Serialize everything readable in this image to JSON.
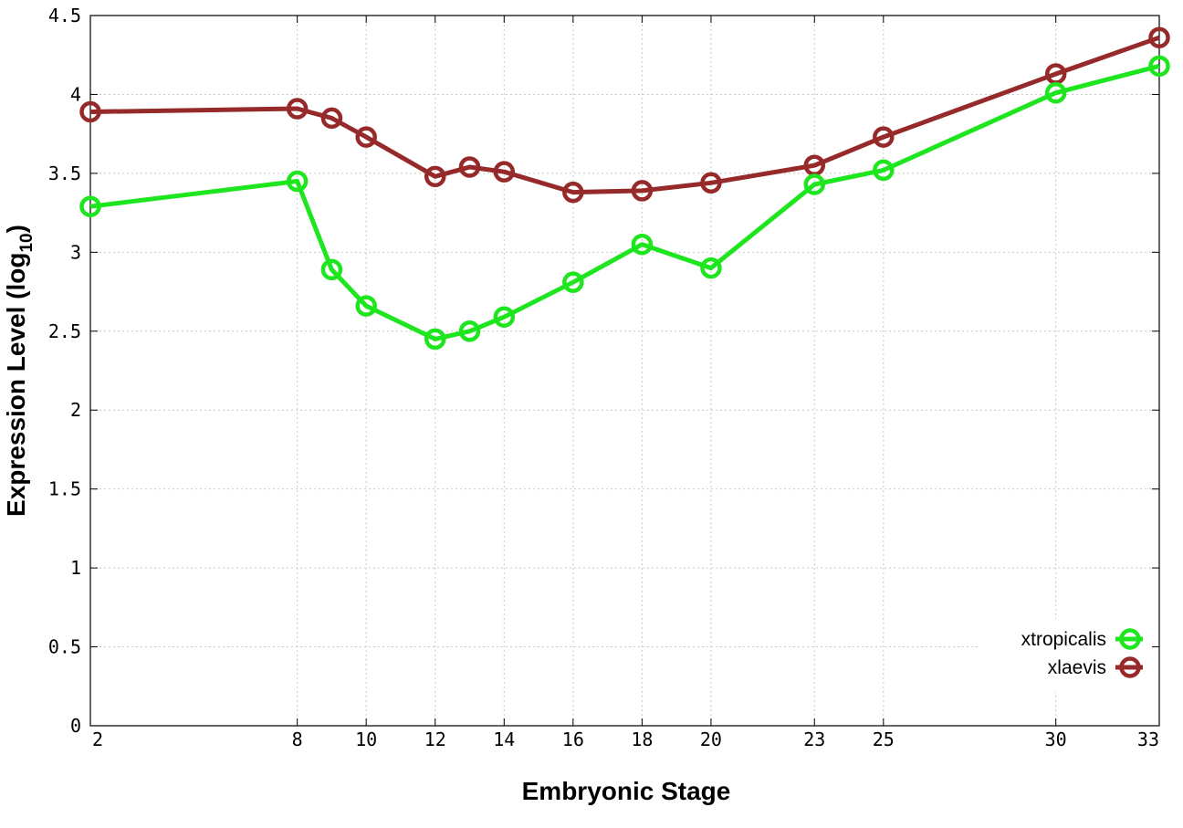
{
  "chart_data": {
    "type": "line",
    "xlabel": "Embryonic Stage",
    "ylabel": "Expression Level (log",
    "ylabel_sub": "10",
    "ylabel_close": ")",
    "x_ticks": [
      2,
      8,
      10,
      12,
      14,
      16,
      18,
      20,
      23,
      25,
      30,
      33
    ],
    "y_ticks": [
      0,
      0.5,
      1,
      1.5,
      2,
      2.5,
      3,
      3.5,
      4,
      4.5
    ],
    "y_tick_labels": [
      "0",
      "0.5",
      "1",
      "1.5",
      "2",
      "2.5",
      "3",
      "3.5",
      "4",
      "4.5"
    ],
    "ylim": [
      0,
      4.5
    ],
    "xlim": [
      2,
      33
    ],
    "grid": true,
    "legend_position": "bottom-right",
    "series": [
      {
        "name": "xtropicalis",
        "color": "#1ee61e",
        "x": [
          2,
          8,
          9,
          10,
          12,
          13,
          14,
          16,
          18,
          20,
          23,
          25,
          30,
          33
        ],
        "values": [
          3.29,
          3.45,
          2.89,
          2.66,
          2.45,
          2.5,
          2.59,
          2.81,
          3.05,
          2.9,
          3.43,
          3.52,
          4.01,
          4.18
        ]
      },
      {
        "name": "xlaevis",
        "color": "#962a2a",
        "x": [
          2,
          8,
          9,
          10,
          12,
          13,
          14,
          16,
          18,
          20,
          23,
          25,
          30,
          33
        ],
        "values": [
          3.89,
          3.91,
          3.85,
          3.73,
          3.48,
          3.54,
          3.51,
          3.38,
          3.39,
          3.44,
          3.55,
          3.73,
          4.13,
          4.36
        ]
      }
    ]
  }
}
